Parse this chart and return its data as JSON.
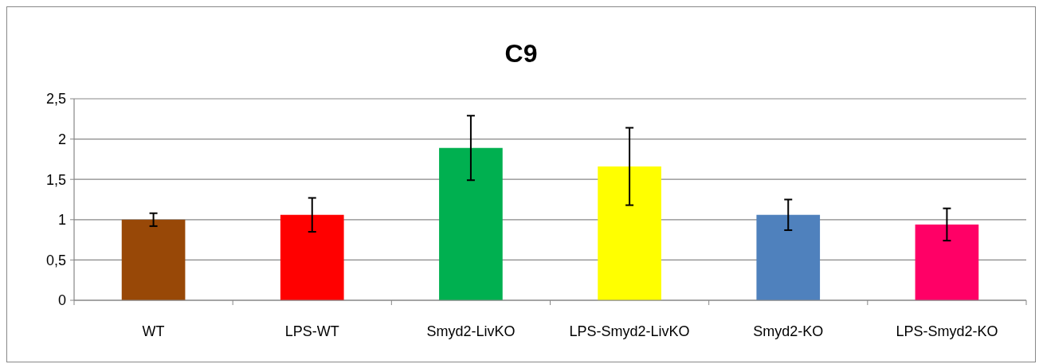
{
  "chart_data": {
    "type": "bar",
    "title": "C9",
    "categories": [
      "WT",
      "LPS-WT",
      "Smyd2-LivKO",
      "LPS-Smyd2-LivKO",
      "Smyd2-KO",
      "LPS-Smyd2-KO"
    ],
    "values": [
      1.0,
      1.06,
      1.89,
      1.66,
      1.06,
      0.94
    ],
    "errors": [
      0.08,
      0.21,
      0.4,
      0.48,
      0.19,
      0.2
    ],
    "colors": [
      "#984807",
      "#ff0000",
      "#00b050",
      "#ffff00",
      "#4f81bd",
      "#ff0066"
    ],
    "ylim": [
      0,
      2.5
    ],
    "yticks": [
      0,
      {
        "value": 0.5,
        "label": "0,5"
      },
      1,
      {
        "value": 1.5,
        "label": "1,5"
      },
      2,
      {
        "value": 2.5,
        "label": "2,5"
      }
    ],
    "grid": "y"
  }
}
